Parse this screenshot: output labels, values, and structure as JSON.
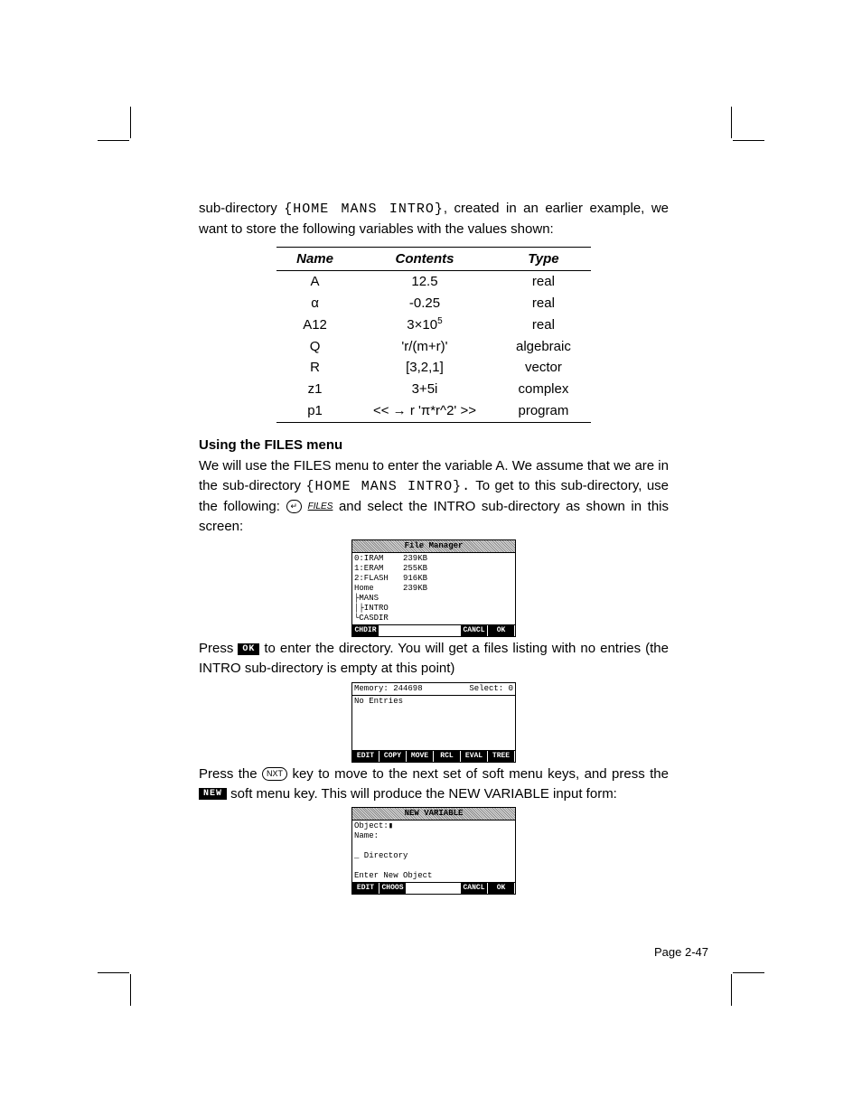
{
  "intro": {
    "line1a": "sub-directory",
    "path1": "{HOME MANS INTRO}",
    "line1b": ", created in an earlier example, we want to store the following variables with the values shown:"
  },
  "table": {
    "headers": {
      "name": "Name",
      "contents": "Contents",
      "type": "Type"
    },
    "rows": [
      {
        "name": "A",
        "contents": "12.5",
        "type": "real"
      },
      {
        "name": "α",
        "contents": "-0.25",
        "type": "real"
      },
      {
        "name": "A12",
        "contents": "3×10",
        "exp": "5",
        "type": "real"
      },
      {
        "name": "Q",
        "contents": "'r/(m+r)'",
        "type": "algebraic"
      },
      {
        "name": "R",
        "contents": "[3,2,1]",
        "type": "vector"
      },
      {
        "name": "z1",
        "contents": "3+5i",
        "type": "complex"
      },
      {
        "name": "p1",
        "contents": "<< → r 'π*r^2' >>",
        "type": "program"
      }
    ]
  },
  "section": {
    "title": "Using the FILES menu"
  },
  "p2": {
    "a": "We will use the FILES menu to enter the variable A.  We assume that we are in the sub-directory ",
    "path": "{HOME MANS INTRO}.",
    "b": "  To get to this sub-directory, use the following:  ",
    "keylabel": "FILES",
    "c": "  and select the INTRO sub-directory as shown in this screen:"
  },
  "screen1": {
    "title": "File Manager",
    "body": "0:IRAM    239KB\n1:ERAM    255KB\n2:FLASH   916KB\nHome      239KB\n├MANS\n│├INTRO\n└CASDIR",
    "menu": [
      "CHDIR",
      "",
      "",
      "",
      "CANCL",
      "OK"
    ]
  },
  "p3": {
    "a": "Press ",
    "key": "OK",
    "b": " to enter the directory.   You will get a files listing with no entries (the INTRO sub-directory is empty at this point)"
  },
  "screen2": {
    "memlabel": "Memory: 244698",
    "sellabel": "Select:      0",
    "body": "No Entries",
    "menu": [
      "EDIT",
      "COPY",
      "MOVE",
      "RCL",
      "EVAL",
      "TREE"
    ]
  },
  "p4": {
    "a": "Press the ",
    "key": "NXT",
    "b": " key to move to the next set of soft menu keys, and press the ",
    "soft": "NEW",
    "c": " soft menu key.  This will produce the NEW VARIABLE input form:"
  },
  "screen3": {
    "title": "NEW VARIABLE",
    "body": "Object:▮\nName:\n\n_ Directory\n\nEnter New Object",
    "menu": [
      "EDIT",
      "CHOOS",
      "",
      "",
      "CANCL",
      "OK"
    ]
  },
  "pagenum": "Page 2-47"
}
